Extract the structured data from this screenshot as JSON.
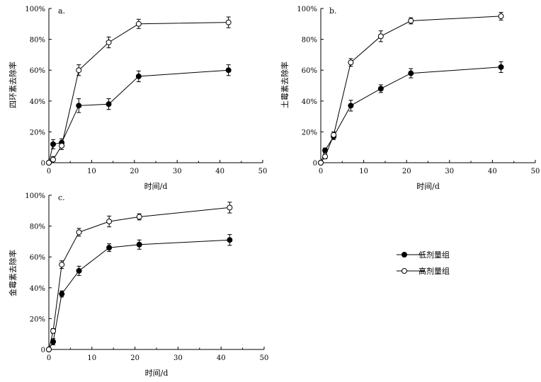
{
  "chart_data": [
    {
      "type": "line",
      "panel_label": "a.",
      "xlabel": "时间/d",
      "ylabel": "四环素去除率",
      "xlim": [
        0,
        50
      ],
      "ylim": [
        0,
        100
      ],
      "xticks": [
        "0",
        "10",
        "20",
        "30",
        "40",
        "50"
      ],
      "yticks": [
        "0",
        "20%",
        "40%",
        "60%",
        "80%",
        "100%"
      ],
      "x": [
        0,
        1,
        3,
        7,
        14,
        21,
        42
      ],
      "series": [
        {
          "name": "低剂量组",
          "marker": "filled-circle",
          "values": [
            0,
            12,
            13,
            37,
            38,
            56,
            60
          ],
          "errors": [
            0,
            3,
            2.5,
            4.5,
            3.5,
            3.5,
            3.5
          ]
        },
        {
          "name": "高剂量组",
          "marker": "open-circle",
          "values": [
            0,
            2,
            11,
            60,
            78,
            90,
            91
          ],
          "errors": [
            0,
            2,
            2.5,
            3.5,
            3.5,
            3,
            3.5
          ]
        }
      ]
    },
    {
      "type": "line",
      "panel_label": "b.",
      "xlabel": "时间/d",
      "ylabel": "土霉素去除率",
      "xlim": [
        0,
        50
      ],
      "ylim": [
        0,
        100
      ],
      "xticks": [
        "0",
        "10",
        "20",
        "30",
        "40",
        "50"
      ],
      "yticks": [
        "0",
        "20%",
        "40%",
        "60%",
        "80%",
        "100%"
      ],
      "x": [
        0,
        1,
        3,
        7,
        14,
        21,
        42
      ],
      "series": [
        {
          "name": "低剂量组",
          "marker": "filled-circle",
          "values": [
            0,
            8,
            17,
            37,
            48,
            58,
            62
          ],
          "errors": [
            0,
            1.5,
            2,
            3.5,
            2.5,
            3,
            3.5
          ]
        },
        {
          "name": "高剂量组",
          "marker": "open-circle",
          "values": [
            0,
            4,
            18,
            65,
            82,
            92,
            95
          ],
          "errors": [
            0,
            1.5,
            2,
            2.5,
            3.5,
            2,
            2.5
          ]
        }
      ]
    },
    {
      "type": "line",
      "panel_label": "c.",
      "xlabel": "时间/d",
      "ylabel": "金霉素去除率",
      "xlim": [
        0,
        50
      ],
      "ylim": [
        0,
        100
      ],
      "xticks": [
        "0",
        "10",
        "20",
        "30",
        "40",
        "50"
      ],
      "yticks": [
        "0",
        "20%",
        "40%",
        "60%",
        "80%",
        "100%"
      ],
      "x": [
        0,
        1,
        3,
        7,
        14,
        21,
        42
      ],
      "series": [
        {
          "name": "低剂量组",
          "marker": "filled-circle",
          "values": [
            0,
            5,
            36,
            51,
            66,
            68,
            71
          ],
          "errors": [
            0,
            2,
            2,
            3,
            2.5,
            3,
            3.5
          ]
        },
        {
          "name": "高剂量组",
          "marker": "open-circle",
          "values": [
            0,
            12,
            55,
            76,
            83,
            86,
            92
          ],
          "errors": [
            0,
            1.5,
            2.5,
            2.5,
            3.5,
            2,
            3.5
          ]
        }
      ]
    }
  ],
  "legend": {
    "items": [
      {
        "label": "低剂量组",
        "marker": "filled-circle"
      },
      {
        "label": "高剂量组",
        "marker": "open-circle"
      }
    ]
  }
}
